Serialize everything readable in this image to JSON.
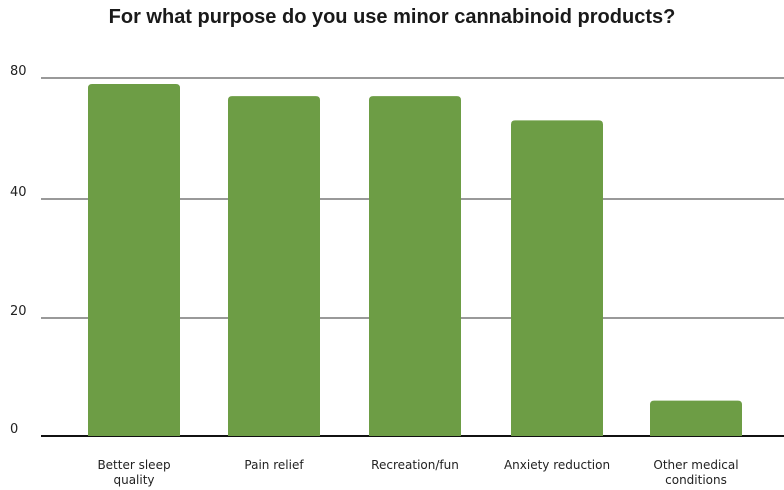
{
  "chart_data": {
    "type": "bar",
    "title": "For what purpose do you use minor cannabinoid products?",
    "categories": [
      [
        "Better sleep",
        "quality"
      ],
      [
        "Pain relief"
      ],
      [
        "Recreation/fun"
      ],
      [
        "Anxiety reduction"
      ],
      [
        "Other medical",
        "conditions"
      ]
    ],
    "values": [
      78,
      74,
      74,
      66,
      6
    ],
    "yticks": [
      {
        "label": "0",
        "value": 0
      },
      {
        "label": "20",
        "value": 20
      },
      {
        "label": "40",
        "value": 40
      },
      {
        "label": "80",
        "value": 80
      }
    ],
    "bar_color": "#6d9d45",
    "grid": true
  }
}
